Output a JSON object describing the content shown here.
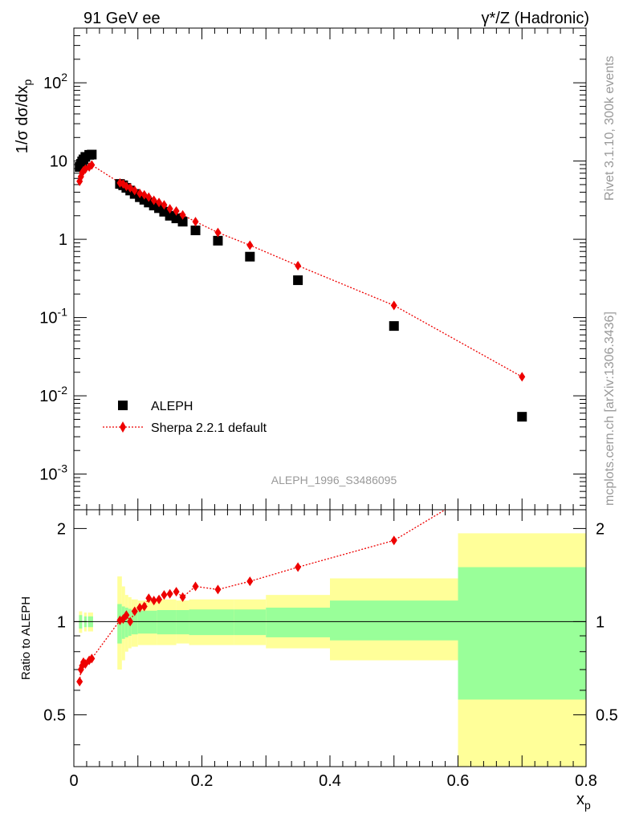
{
  "header": {
    "left": "91 GeV ee",
    "right": "γ*/Z (Hadronic)"
  },
  "side": {
    "rivet": "Rivet 3.1.10,  300k events",
    "mcplots": "mcplots.cern.ch [arXiv:1306.3436]"
  },
  "analysis_id": "ALEPH_1996_S3486095",
  "colors": {
    "data": "#000000",
    "mc": "#ee0000",
    "band_inner": "#99ff99",
    "band_outer": "#ffff99"
  },
  "chart_data": [
    {
      "type": "scatter",
      "ylabel_main": "1/σ dσ/dx",
      "ylabel_sub": "p",
      "yscale": "log",
      "xlim": [
        0,
        0.8
      ],
      "ylim": [
        0.00035,
        500
      ],
      "ytick_labels": [
        "10^-3",
        "10^-2",
        "10^-1",
        "1",
        "10",
        "10^2"
      ],
      "legend_position": "bottom-left",
      "series": [
        {
          "name": "ALEPH",
          "marker": "square",
          "points": [
            [
              0.009,
              8.4
            ],
            [
              0.011,
              9.2
            ],
            [
              0.013,
              9.9
            ],
            [
              0.015,
              10.5
            ],
            [
              0.018,
              11.3
            ],
            [
              0.024,
              12.0
            ],
            [
              0.028,
              12.1
            ],
            [
              0.072,
              5.1
            ],
            [
              0.077,
              4.9
            ],
            [
              0.082,
              4.55
            ],
            [
              0.088,
              4.2
            ],
            [
              0.095,
              3.8
            ],
            [
              0.103,
              3.45
            ],
            [
              0.11,
              3.2
            ],
            [
              0.117,
              2.95
            ],
            [
              0.125,
              2.7
            ],
            [
              0.133,
              2.5
            ],
            [
              0.141,
              2.25
            ],
            [
              0.15,
              2.0
            ],
            [
              0.16,
              1.85
            ],
            [
              0.17,
              1.68
            ],
            [
              0.19,
              1.3
            ],
            [
              0.225,
              0.96
            ],
            [
              0.275,
              0.6
            ],
            [
              0.35,
              0.3
            ],
            [
              0.5,
              0.078
            ],
            [
              0.7,
              0.0054
            ]
          ]
        },
        {
          "name": "Sherpa 2.2.1 default",
          "marker": "diamond",
          "line": "dotted",
          "points": [
            [
              0.009,
              5.5
            ],
            [
              0.011,
              6.3
            ],
            [
              0.013,
              7.1
            ],
            [
              0.015,
              7.5
            ],
            [
              0.018,
              7.9
            ],
            [
              0.024,
              8.4
            ],
            [
              0.028,
              8.9
            ],
            [
              0.072,
              5.25
            ],
            [
              0.077,
              5.1
            ],
            [
              0.082,
              4.75
            ],
            [
              0.088,
              4.55
            ],
            [
              0.095,
              4.2
            ],
            [
              0.103,
              3.85
            ],
            [
              0.11,
              3.7
            ],
            [
              0.117,
              3.45
            ],
            [
              0.125,
              3.15
            ],
            [
              0.133,
              2.95
            ],
            [
              0.141,
              2.75
            ],
            [
              0.15,
              2.45
            ],
            [
              0.16,
              2.3
            ],
            [
              0.17,
              2.05
            ],
            [
              0.19,
              1.68
            ],
            [
              0.225,
              1.22
            ],
            [
              0.275,
              0.84
            ],
            [
              0.35,
              0.46
            ],
            [
              0.5,
              0.143
            ],
            [
              0.7,
              0.0175
            ]
          ]
        }
      ]
    },
    {
      "type": "scatter",
      "ylabel": "Ratio to ALEPH",
      "xlabel_main": "x",
      "xlabel_sub": "p",
      "xlim": [
        0,
        0.8
      ],
      "ylim": [
        0.34,
        2.3
      ],
      "xticks": [
        "0",
        "0.2",
        "0.4",
        "0.6",
        "0.8"
      ],
      "yticks": [
        "0.5",
        "1",
        "2"
      ],
      "reference_line": 1,
      "bands": [
        {
          "x0": 0.008,
          "x1": 0.013,
          "in": [
            0.95,
            1.05
          ],
          "out": [
            0.92,
            1.08
          ]
        },
        {
          "x0": 0.016,
          "x1": 0.02,
          "in": [
            0.96,
            1.04
          ],
          "out": [
            0.93,
            1.07
          ]
        },
        {
          "x0": 0.022,
          "x1": 0.03,
          "in": [
            0.96,
            1.04
          ],
          "out": [
            0.93,
            1.07
          ]
        },
        {
          "x0": 0.068,
          "x1": 0.075,
          "in": [
            0.85,
            1.14
          ],
          "out": [
            0.7,
            1.4
          ]
        },
        {
          "x0": 0.075,
          "x1": 0.08,
          "in": [
            0.88,
            1.12
          ],
          "out": [
            0.75,
            1.3
          ]
        },
        {
          "x0": 0.08,
          "x1": 0.085,
          "in": [
            0.89,
            1.11
          ],
          "out": [
            0.8,
            1.22
          ]
        },
        {
          "x0": 0.085,
          "x1": 0.09,
          "in": [
            0.9,
            1.1
          ],
          "out": [
            0.82,
            1.2
          ]
        },
        {
          "x0": 0.09,
          "x1": 0.1,
          "in": [
            0.91,
            1.09
          ],
          "out": [
            0.83,
            1.18
          ]
        },
        {
          "x0": 0.1,
          "x1": 0.13,
          "in": [
            0.915,
            1.085
          ],
          "out": [
            0.84,
            1.17
          ]
        },
        {
          "x0": 0.13,
          "x1": 0.16,
          "in": [
            0.91,
            1.09
          ],
          "out": [
            0.84,
            1.18
          ]
        },
        {
          "x0": 0.16,
          "x1": 0.18,
          "in": [
            0.91,
            1.09
          ],
          "out": [
            0.85,
            1.17
          ]
        },
        {
          "x0": 0.18,
          "x1": 0.25,
          "in": [
            0.905,
            1.095
          ],
          "out": [
            0.84,
            1.18
          ]
        },
        {
          "x0": 0.25,
          "x1": 0.3,
          "in": [
            0.905,
            1.095
          ],
          "out": [
            0.84,
            1.18
          ]
        },
        {
          "x0": 0.3,
          "x1": 0.4,
          "in": [
            0.89,
            1.11
          ],
          "out": [
            0.82,
            1.22
          ]
        },
        {
          "x0": 0.4,
          "x1": 0.6,
          "in": [
            0.87,
            1.17
          ],
          "out": [
            0.75,
            1.38
          ]
        },
        {
          "x0": 0.6,
          "x1": 0.8,
          "in": [
            0.56,
            1.5
          ],
          "out": [
            0.34,
            1.93
          ]
        }
      ],
      "ratio_points": [
        [
          0.009,
          0.64
        ],
        [
          0.011,
          0.7
        ],
        [
          0.013,
          0.72
        ],
        [
          0.015,
          0.74
        ],
        [
          0.018,
          0.73
        ],
        [
          0.024,
          0.75
        ],
        [
          0.028,
          0.76
        ],
        [
          0.072,
          1.01
        ],
        [
          0.077,
          1.02
        ],
        [
          0.082,
          1.05
        ],
        [
          0.088,
          1.0
        ],
        [
          0.095,
          1.08
        ],
        [
          0.103,
          1.11
        ],
        [
          0.11,
          1.12
        ],
        [
          0.117,
          1.19
        ],
        [
          0.125,
          1.17
        ],
        [
          0.133,
          1.18
        ],
        [
          0.141,
          1.22
        ],
        [
          0.15,
          1.23
        ],
        [
          0.16,
          1.25
        ],
        [
          0.17,
          1.2
        ],
        [
          0.19,
          1.3
        ],
        [
          0.225,
          1.27
        ],
        [
          0.275,
          1.35
        ],
        [
          0.35,
          1.5
        ],
        [
          0.5,
          1.83
        ],
        [
          0.58,
          2.3
        ]
      ]
    }
  ]
}
